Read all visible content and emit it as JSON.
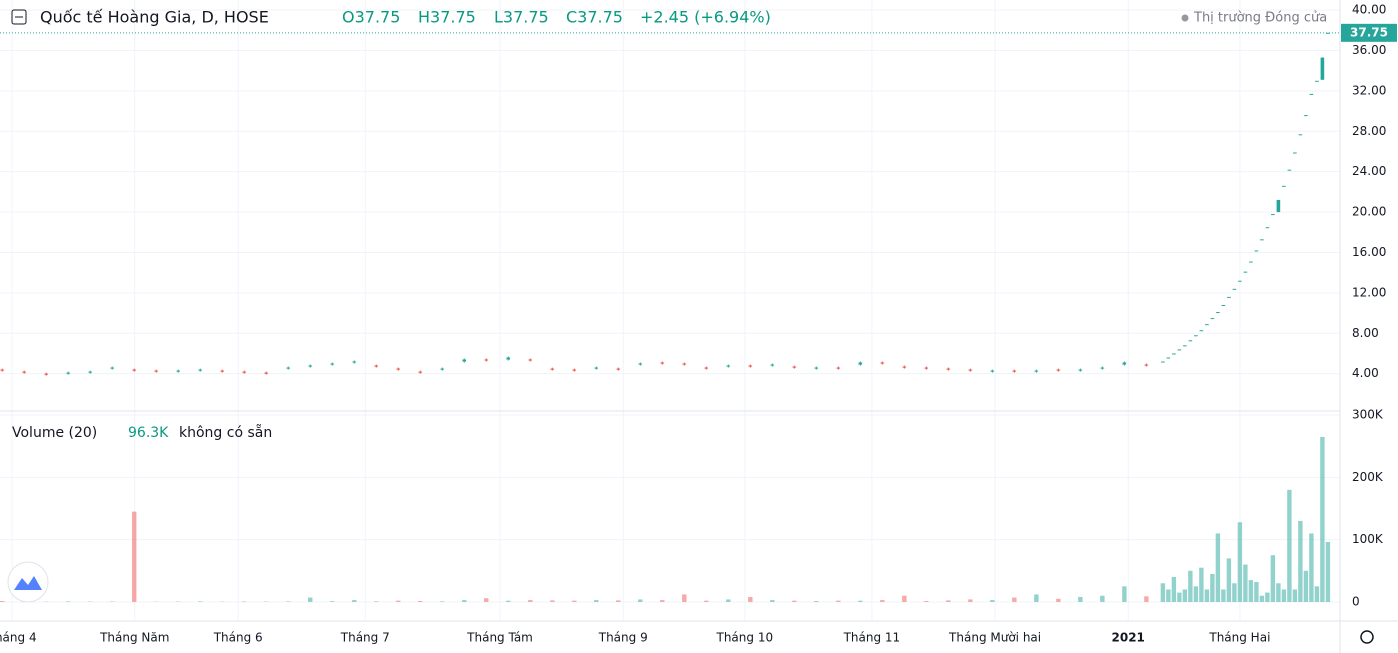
{
  "chart_data": [
    {
      "type": "candlestick",
      "title": "Quốc tế Hoàng Gia, D, HOSE",
      "ohlc": [
        "O37.75",
        "H37.75",
        "L37.75",
        "C37.75"
      ],
      "change": "+2.45 (+6.94%)",
      "status": "Thị trường Đóng cửa",
      "up_color": "#26a69a",
      "down_color": "#ef5350",
      "last_price": 37.75,
      "x": [
        0,
        4,
        8,
        12,
        16,
        20,
        24,
        28,
        32,
        36,
        40,
        44,
        48,
        52,
        56,
        60,
        64,
        68,
        72,
        76,
        80,
        84,
        88,
        92,
        96,
        100,
        104,
        108,
        112,
        116,
        120,
        124,
        128,
        132,
        136,
        140,
        144,
        148,
        152,
        156,
        160,
        164,
        168,
        172,
        176,
        180,
        184,
        188,
        192,
        196,
        200,
        204,
        208,
        211,
        212,
        213,
        214,
        215,
        216,
        217,
        218,
        219,
        220,
        221,
        222,
        223,
        224,
        225,
        226,
        227,
        228,
        229,
        230,
        231,
        232,
        233,
        234,
        235,
        236,
        237,
        238,
        239,
        240,
        241
      ],
      "open": [
        4.4,
        4.2,
        4.0,
        4.0,
        4.1,
        4.5,
        4.4,
        4.3,
        4.2,
        4.3,
        4.3,
        4.2,
        4.1,
        4.5,
        4.7,
        4.9,
        5.1,
        4.8,
        4.5,
        4.2,
        4.4,
        5.2,
        5.4,
        5.4,
        5.4,
        4.5,
        4.4,
        4.5,
        4.5,
        4.9,
        5.1,
        5.0,
        4.6,
        4.7,
        4.8,
        4.8,
        4.7,
        4.5,
        4.6,
        4.9,
        5.1,
        4.7,
        4.6,
        4.5,
        4.4,
        4.2,
        4.3,
        4.2,
        4.4,
        4.3,
        4.5,
        4.9,
        4.9,
        5.2,
        5.6,
        6.0,
        6.4,
        6.8,
        7.3,
        7.8,
        8.3,
        8.9,
        9.5,
        10.1,
        10.8,
        11.6,
        12.4,
        13.2,
        14.1,
        15.1,
        16.2,
        17.3,
        18.5,
        19.8,
        20.0,
        22.6,
        24.2,
        25.9,
        27.7,
        29.6,
        31.7,
        33.0,
        33.1,
        37.75
      ],
      "high": [
        4.5,
        4.3,
        4.1,
        4.2,
        4.3,
        4.7,
        4.5,
        4.4,
        4.4,
        4.5,
        4.4,
        4.3,
        4.2,
        4.7,
        4.9,
        5.1,
        5.3,
        4.9,
        4.6,
        4.3,
        4.6,
        5.5,
        5.5,
        5.7,
        5.5,
        4.6,
        4.5,
        4.7,
        4.6,
        5.1,
        5.2,
        5.1,
        4.7,
        4.9,
        4.9,
        5.0,
        4.8,
        4.7,
        4.7,
        5.2,
        5.2,
        4.8,
        4.7,
        4.6,
        4.5,
        4.4,
        4.4,
        4.4,
        4.5,
        4.5,
        4.7,
        5.2,
        5.0,
        5.2,
        5.6,
        6.0,
        6.4,
        6.8,
        7.3,
        7.8,
        8.3,
        8.9,
        9.5,
        10.1,
        10.8,
        11.6,
        12.4,
        13.2,
        14.1,
        15.1,
        16.2,
        17.3,
        18.5,
        19.8,
        21.2,
        22.6,
        24.2,
        25.9,
        27.7,
        29.6,
        31.7,
        33.0,
        35.3,
        37.75
      ],
      "low": [
        4.2,
        4.0,
        3.8,
        3.9,
        4.0,
        4.4,
        4.2,
        4.1,
        4.1,
        4.2,
        4.1,
        4.0,
        3.9,
        4.4,
        4.6,
        4.8,
        5.0,
        4.6,
        4.3,
        4.0,
        4.3,
        5.1,
        5.2,
        5.3,
        5.2,
        4.3,
        4.2,
        4.4,
        4.3,
        4.8,
        4.9,
        4.8,
        4.4,
        4.6,
        4.6,
        4.7,
        4.5,
        4.4,
        4.4,
        4.8,
        4.9,
        4.5,
        4.4,
        4.3,
        4.2,
        4.1,
        4.1,
        4.1,
        4.2,
        4.2,
        4.4,
        4.8,
        4.7,
        5.2,
        5.6,
        6.0,
        6.4,
        6.8,
        7.3,
        7.8,
        8.3,
        8.9,
        9.5,
        10.1,
        10.8,
        11.6,
        12.4,
        13.2,
        14.1,
        15.1,
        16.2,
        17.3,
        18.5,
        19.8,
        20.0,
        22.6,
        24.2,
        25.9,
        27.7,
        29.6,
        31.7,
        33.0,
        33.1,
        37.75
      ],
      "close": [
        4.3,
        4.1,
        3.9,
        4.1,
        4.2,
        4.6,
        4.3,
        4.2,
        4.3,
        4.4,
        4.2,
        4.1,
        4.0,
        4.6,
        4.8,
        5.0,
        5.2,
        4.7,
        4.4,
        4.1,
        4.5,
        5.4,
        5.3,
        5.6,
        5.3,
        4.4,
        4.3,
        4.6,
        4.4,
        5.0,
        5.0,
        4.9,
        4.5,
        4.8,
        4.7,
        4.9,
        4.6,
        4.6,
        4.5,
        5.1,
        5.0,
        4.6,
        4.5,
        4.4,
        4.3,
        4.3,
        4.2,
        4.3,
        4.3,
        4.4,
        4.6,
        5.1,
        4.8,
        5.2,
        5.6,
        6.0,
        6.4,
        6.8,
        7.3,
        7.8,
        8.3,
        8.9,
        9.5,
        10.1,
        10.8,
        11.6,
        12.4,
        13.2,
        14.1,
        15.1,
        16.2,
        17.3,
        18.5,
        19.8,
        21.2,
        22.6,
        24.2,
        25.9,
        27.7,
        29.6,
        31.7,
        33.0,
        35.3,
        37.75
      ],
      "xlim": [
        -0.4,
        243.2
      ],
      "xticks": [
        {
          "value": 1.8,
          "label": "Tháng 4"
        },
        {
          "value": 24.1,
          "label": "Tháng Năm"
        },
        {
          "value": 42.9,
          "label": "Tháng 6"
        },
        {
          "value": 66,
          "label": "Tháng 7"
        },
        {
          "value": 90.5,
          "label": "Tháng Tám"
        },
        {
          "value": 112.9,
          "label": "Tháng 9"
        },
        {
          "value": 135,
          "label": "Tháng 10"
        },
        {
          "value": 158.1,
          "label": "Tháng 11"
        },
        {
          "value": 180.5,
          "label": "Tháng Mười hai"
        },
        {
          "value": 204.7,
          "label": "2021"
        },
        {
          "value": 225,
          "label": "Tháng Hai"
        }
      ],
      "ylim": [
        0.4,
        41
      ],
      "yticks": [
        {
          "value": 4,
          "label": "4.00"
        },
        {
          "value": 8,
          "label": "8.00"
        },
        {
          "value": 12,
          "label": "12.00"
        },
        {
          "value": 16,
          "label": "16.00"
        },
        {
          "value": 20,
          "label": "20.00"
        },
        {
          "value": 24,
          "label": "24.00"
        },
        {
          "value": 28,
          "label": "28.00"
        },
        {
          "value": 32,
          "label": "32.00"
        },
        {
          "value": 36,
          "label": "36.00"
        },
        {
          "value": 40,
          "label": "40.00"
        }
      ],
      "grid": true
    },
    {
      "type": "bar",
      "title": "Volume (20)",
      "last_value": "96.3K",
      "note": "không có sẵn",
      "values": [
        1500,
        800,
        500,
        900,
        600,
        700,
        145000,
        400,
        600,
        900,
        500,
        700,
        600,
        800,
        7000,
        1200,
        3000,
        1000,
        2000,
        1500,
        900,
        3000,
        6000,
        2000,
        3000,
        2500,
        2000,
        3000,
        2500,
        4000,
        3000,
        12000,
        2000,
        4000,
        8000,
        3000,
        2000,
        1500,
        2000,
        2000,
        3000,
        10000,
        1500,
        2500,
        4000,
        3000,
        7000,
        12000,
        5000,
        8000,
        10000,
        25000,
        9000,
        30000,
        20000,
        40000,
        15000,
        20000,
        50000,
        25000,
        55000,
        20000,
        45000,
        110000,
        20000,
        70000,
        30000,
        128000,
        60000,
        35000,
        32000,
        10000,
        15000,
        75000,
        30000,
        20000,
        180000,
        20000,
        130000,
        50000,
        110000,
        25000,
        265000,
        96300
      ],
      "ylim": [
        -29000,
        305000
      ],
      "yticks": [
        0,
        {
          "value": 100000,
          "label": "100K"
        },
        {
          "value": 200000,
          "label": "200K"
        },
        {
          "value": 300000,
          "label": "300K"
        }
      ],
      "grid": true
    }
  ]
}
